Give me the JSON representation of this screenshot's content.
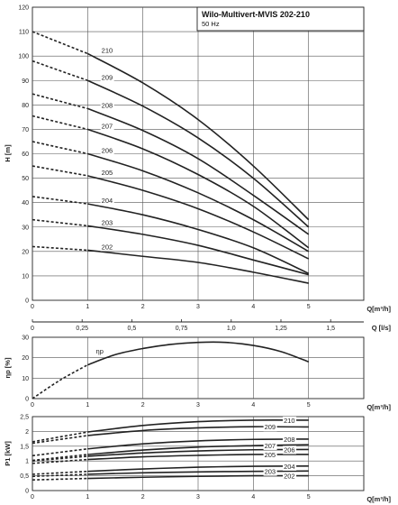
{
  "chart_data": [
    {
      "type": "line",
      "title": "Wilo-Multivert-MVIS 202-210",
      "subtitle": "50 Hz",
      "ylabel": "H [m]",
      "xlabel": "Q[m³/h]",
      "xlim": [
        0,
        6
      ],
      "ylim": [
        0,
        120
      ],
      "xticks": [
        "0",
        "1",
        "2",
        "3",
        "4",
        "5"
      ],
      "yticks": [
        "0",
        "10",
        "20",
        "30",
        "40",
        "50",
        "60",
        "70",
        "80",
        "90",
        "100",
        "110",
        "120"
      ],
      "secondary_x_axis": {
        "label": "Q [l/s]",
        "ticks": [
          "0",
          "0,25",
          "0,5",
          "0,75",
          "1,0",
          "1,25",
          "1,5"
        ]
      },
      "grid": true,
      "dashed_segment": "0 to 1 m³/h",
      "series": [
        {
          "name": "202",
          "x": [
            0,
            1,
            2,
            3,
            4,
            5
          ],
          "y": [
            22,
            20.5,
            18,
            15.5,
            11.5,
            7
          ]
        },
        {
          "name": "203",
          "x": [
            0,
            1,
            2,
            3,
            4,
            5
          ],
          "y": [
            33,
            30.5,
            27,
            22.5,
            16.5,
            10.5
          ]
        },
        {
          "name": "204",
          "x": [
            0,
            1,
            2,
            3,
            4,
            5
          ],
          "y": [
            42.5,
            39.5,
            35,
            29,
            21.5,
            11
          ]
        },
        {
          "name": "205",
          "x": [
            0,
            1,
            2,
            3,
            4,
            5
          ],
          "y": [
            55,
            51,
            45,
            37.5,
            28,
            17
          ]
        },
        {
          "name": "206",
          "x": [
            0,
            1,
            2,
            3,
            4,
            5
          ],
          "y": [
            65,
            60,
            53,
            44,
            33,
            20
          ]
        },
        {
          "name": "207",
          "x": [
            0,
            1,
            2,
            3,
            4,
            5
          ],
          "y": [
            75.5,
            70,
            62,
            51.5,
            38.5,
            21.5
          ]
        },
        {
          "name": "208",
          "x": [
            0,
            1,
            2,
            3,
            4,
            5
          ],
          "y": [
            84.5,
            78.5,
            69.5,
            58,
            43,
            27
          ]
        },
        {
          "name": "209",
          "x": [
            0,
            1,
            2,
            3,
            4,
            5
          ],
          "y": [
            98,
            90,
            79.5,
            66.5,
            50,
            30
          ]
        },
        {
          "name": "210",
          "x": [
            0,
            1,
            2,
            3,
            4,
            5
          ],
          "y": [
            110,
            101,
            89,
            74,
            55,
            33
          ]
        }
      ]
    },
    {
      "type": "line",
      "ylabel": "ηp [%]",
      "xlabel": "Q[m³/h]",
      "xlim": [
        0,
        6
      ],
      "ylim": [
        0,
        30
      ],
      "xticks": [
        "0",
        "1",
        "2",
        "3",
        "4",
        "5"
      ],
      "yticks": [
        "0",
        "10",
        "20",
        "30"
      ],
      "grid": true,
      "dashed_segment": "0 to 1 m³/h",
      "series": [
        {
          "name": "ηp",
          "x": [
            0,
            0.5,
            1,
            1.5,
            2,
            2.5,
            3,
            3.5,
            4,
            4.5,
            5
          ],
          "y": [
            0,
            9,
            16.5,
            21.5,
            24.5,
            26.5,
            27.5,
            27.5,
            26,
            23,
            18
          ]
        }
      ]
    },
    {
      "type": "line",
      "ylabel": "P1 [kW]",
      "xlabel": "Q[m³/h]",
      "xlim": [
        0,
        6
      ],
      "ylim": [
        0,
        2.5
      ],
      "xticks": [
        "0",
        "1",
        "2",
        "3",
        "4",
        "5"
      ],
      "yticks": [
        "0",
        "0,5",
        "1",
        "1,5",
        "2",
        "2,5"
      ],
      "grid": true,
      "dashed_segment": "0 to 1 m³/h",
      "series": [
        {
          "name": "202",
          "x": [
            0,
            1,
            2,
            3,
            4,
            5
          ],
          "y": [
            0.36,
            0.41,
            0.45,
            0.48,
            0.5,
            0.5
          ]
        },
        {
          "name": "203",
          "x": [
            0,
            1,
            2,
            3,
            4,
            5
          ],
          "y": [
            0.48,
            0.55,
            0.6,
            0.63,
            0.65,
            0.66
          ]
        },
        {
          "name": "204",
          "x": [
            0,
            1,
            2,
            3,
            4,
            5
          ],
          "y": [
            0.55,
            0.65,
            0.73,
            0.79,
            0.82,
            0.83
          ]
        },
        {
          "name": "205",
          "x": [
            0,
            1,
            2,
            3,
            4,
            5
          ],
          "y": [
            0.92,
            1.05,
            1.14,
            1.19,
            1.22,
            1.22
          ]
        },
        {
          "name": "206",
          "x": [
            0,
            1,
            2,
            3,
            4,
            5
          ],
          "y": [
            1.0,
            1.16,
            1.27,
            1.34,
            1.38,
            1.39
          ]
        },
        {
          "name": "207",
          "x": [
            0,
            1,
            2,
            3,
            4,
            5
          ],
          "y": [
            1.02,
            1.22,
            1.37,
            1.47,
            1.52,
            1.55
          ]
        },
        {
          "name": "208",
          "x": [
            0,
            1,
            2,
            3,
            4,
            5
          ],
          "y": [
            1.18,
            1.41,
            1.58,
            1.68,
            1.73,
            1.74
          ]
        },
        {
          "name": "209",
          "x": [
            0,
            1,
            2,
            3,
            4,
            5
          ],
          "y": [
            1.6,
            1.86,
            2.03,
            2.12,
            2.16,
            2.15
          ]
        },
        {
          "name": "210",
          "x": [
            0,
            1,
            2,
            3,
            4,
            5
          ],
          "y": [
            1.65,
            1.98,
            2.2,
            2.33,
            2.38,
            2.38
          ]
        }
      ]
    }
  ]
}
